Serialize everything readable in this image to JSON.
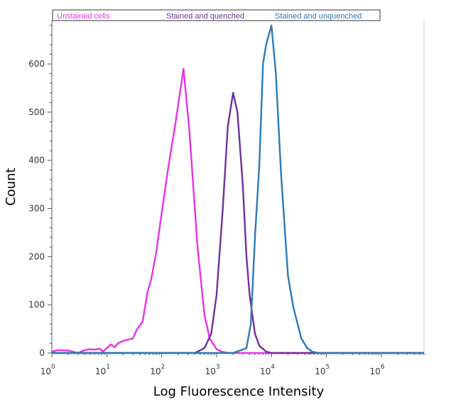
{
  "chart_data": {
    "type": "line",
    "xscale": "log",
    "xlabel": "Log Fluorescence Intensity",
    "ylabel": "Count",
    "xlim": [
      1,
      6000000
    ],
    "ylim": [
      0,
      690
    ],
    "yticks": [
      0,
      100,
      200,
      300,
      400,
      500,
      600
    ],
    "xticks": [
      {
        "value": 1,
        "base": "10",
        "exp": "0"
      },
      {
        "value": 10,
        "base": "10",
        "exp": "1"
      },
      {
        "value": 100,
        "base": "10",
        "exp": "2"
      },
      {
        "value": 1000,
        "base": "10",
        "exp": "3"
      },
      {
        "value": 10000,
        "base": "10",
        "exp": "4"
      },
      {
        "value": 100000,
        "base": "10",
        "exp": "5"
      },
      {
        "value": 1000000,
        "base": "10",
        "exp": "6"
      }
    ],
    "legend_position": "top",
    "grid": false,
    "series": [
      {
        "name": "Unstained cells",
        "color": "#e633e6",
        "x": [
          1,
          1.3,
          2,
          3,
          4,
          5,
          6,
          7.5,
          8.5,
          10,
          12,
          14,
          16,
          20,
          25,
          30,
          35,
          45,
          55,
          65,
          80,
          100,
          130,
          180,
          250,
          320,
          450,
          600,
          750,
          1000,
          1300,
          1700,
          6000000
        ],
        "y": [
          3,
          6,
          5,
          0,
          6,
          8,
          7,
          9,
          3,
          10,
          18,
          12,
          20,
          25,
          28,
          30,
          48,
          65,
          125,
          155,
          210,
          290,
          380,
          480,
          590,
          460,
          220,
          80,
          30,
          8,
          2,
          0,
          0
        ]
      },
      {
        "name": "Stained and quenched",
        "color": "#7030a0",
        "x": [
          1,
          400,
          600,
          800,
          1000,
          1300,
          1600,
          2000,
          2400,
          3000,
          3500,
          4000,
          5000,
          6000,
          8000,
          10000,
          15000,
          6000000
        ],
        "y": [
          0,
          0,
          10,
          40,
          120,
          300,
          470,
          540,
          500,
          350,
          200,
          120,
          40,
          15,
          3,
          0,
          0,
          0
        ]
      },
      {
        "name": "Stained and unquenched",
        "color": "#2a7ab8",
        "x": [
          1,
          2000,
          3500,
          4200,
          5000,
          6000,
          7000,
          8000,
          10000,
          12000,
          15000,
          20000,
          25000,
          35000,
          45000,
          55000,
          70000,
          6000000
        ],
        "y": [
          0,
          0,
          10,
          60,
          240,
          390,
          600,
          640,
          680,
          580,
          370,
          160,
          95,
          30,
          10,
          3,
          0,
          0
        ]
      }
    ]
  }
}
